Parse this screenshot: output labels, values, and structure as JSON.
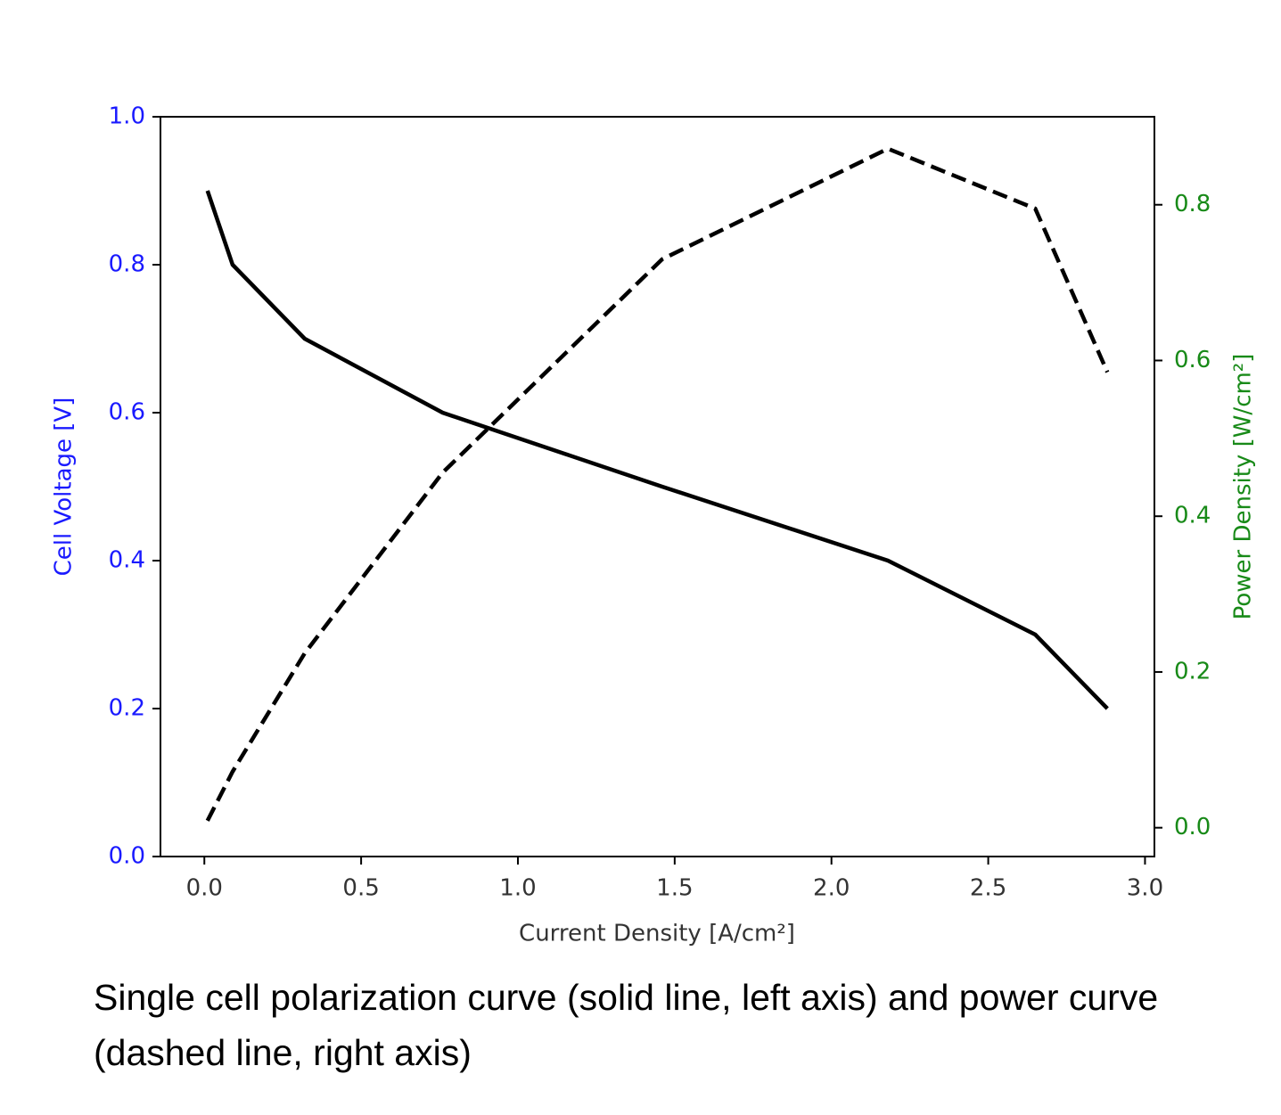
{
  "chart_data": {
    "type": "line",
    "x_label": "Current Density [A/cm²]",
    "y_label": "Cell Voltage [V]",
    "y2_label": "Power Density [W/cm²]",
    "caption": "Single cell polarization curve (solid line, left axis) and power curve (dashed line, right axis)",
    "x": [
      0.01,
      0.09,
      0.32,
      0.76,
      1.46,
      2.18,
      2.65,
      2.88
    ],
    "series": [
      {
        "color": "#000000",
        "dash": "solid",
        "values": [
          0.9,
          0.8,
          0.7,
          0.6,
          0.5,
          0.4,
          0.3,
          0.2
        ]
      },
      {
        "color": "#000000",
        "dash": "dashed",
        "axis": "y2",
        "values": [
          0.009,
          0.072,
          0.224,
          0.456,
          0.73,
          0.872,
          0.795,
          0.585
        ]
      }
    ],
    "xlim": [
      -0.14,
      3.03
    ],
    "xticks": [
      {
        "value": 0,
        "label": "0.0"
      },
      0.5,
      {
        "value": 1,
        "label": "1.0"
      },
      1.5,
      {
        "value": 2,
        "label": "2.0"
      },
      2.5,
      {
        "value": 3,
        "label": "3.0"
      }
    ],
    "ylim": [
      0,
      1
    ],
    "yticks": [
      {
        "value": 0,
        "label": "0.0"
      },
      0.2,
      0.4,
      0.6,
      0.8,
      {
        "value": 1,
        "label": "1.0"
      }
    ],
    "y2lim": [
      -0.037,
      0.913
    ],
    "y2ticks": [
      {
        "value": 0,
        "label": "0.0"
      },
      0.2,
      0.4,
      0.6,
      0.8
    ],
    "y_color": "#1a1aff",
    "y2_color": "#188a18"
  }
}
